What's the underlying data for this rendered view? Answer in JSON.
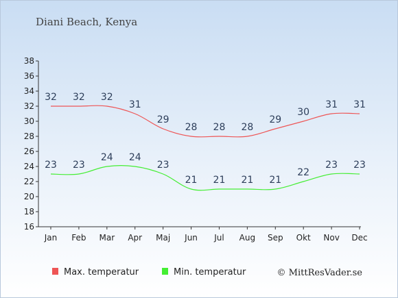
{
  "title": "Diani Beach, Kenya",
  "credit": "© MittResVader.se",
  "chart_data": {
    "type": "line",
    "categories": [
      "Jan",
      "Feb",
      "Mar",
      "Apr",
      "Maj",
      "Jun",
      "Jul",
      "Aug",
      "Sep",
      "Okt",
      "Nov",
      "Dec"
    ],
    "ylim": [
      16,
      38
    ],
    "yticks": [
      16,
      18,
      20,
      22,
      24,
      26,
      28,
      30,
      32,
      34,
      36,
      38
    ],
    "grid": false,
    "legend_position": "bottom",
    "series": [
      {
        "name": "Max. temperatur",
        "color": "#ee5555",
        "values": [
          32,
          32,
          32,
          31,
          29,
          28,
          28,
          28,
          29,
          30,
          31,
          31
        ]
      },
      {
        "name": "Min. temperatur",
        "color": "#44ee33",
        "values": [
          23,
          23,
          24,
          24,
          23,
          21,
          21,
          21,
          21,
          22,
          23,
          23
        ]
      }
    ]
  }
}
